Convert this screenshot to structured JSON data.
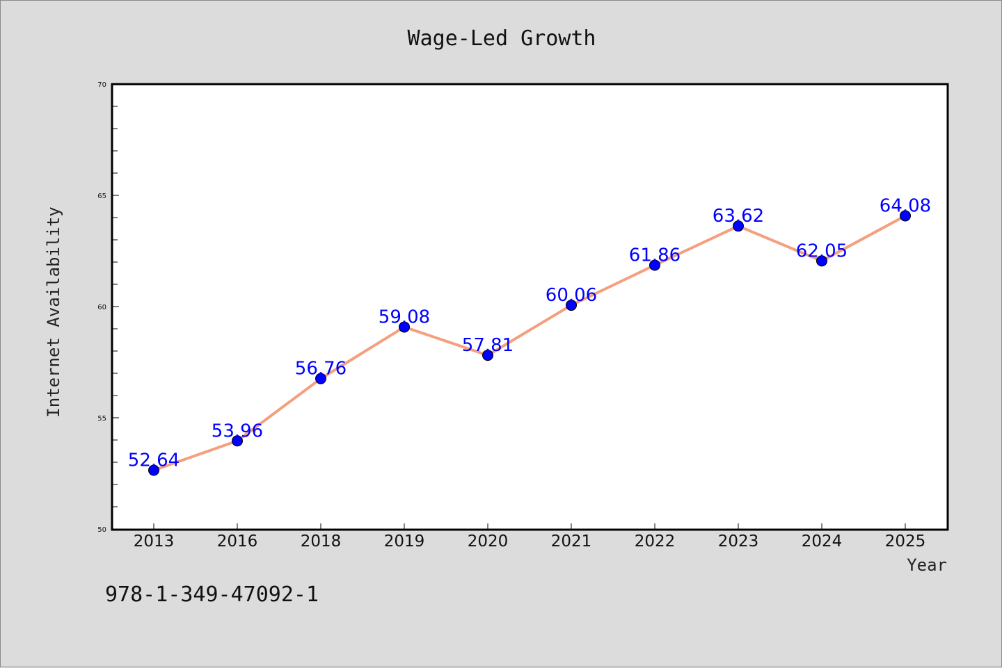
{
  "chart_data": {
    "type": "line",
    "title": "Wage-Led Growth",
    "xlabel": "Year",
    "ylabel": "Internet Availability",
    "categories": [
      "2013",
      "2016",
      "2018",
      "2019",
      "2020",
      "2021",
      "2022",
      "2023",
      "2024",
      "2025"
    ],
    "series": [
      {
        "values": [
          52.64,
          53.96,
          56.76,
          59.08,
          57.81,
          60.06,
          61.86,
          63.62,
          62.05,
          64.08
        ],
        "labels": [
          "52.64",
          "53.96",
          "56.76",
          "59.08",
          "57.81",
          "60.06",
          "61.86",
          "63.62",
          "62.05",
          "64.08"
        ],
        "line_color": "#f4a07e",
        "marker_color": "#0000ff"
      }
    ],
    "ylim": [
      50,
      70
    ],
    "yticks": [
      50,
      55,
      60,
      65,
      70
    ],
    "grid": false,
    "legend": "none"
  },
  "footer": {
    "isbn": "978-1-349-47092-1"
  },
  "colors": {
    "background": "#dcdcdc",
    "plot_background": "#ffffff",
    "label": "#0000ff"
  }
}
